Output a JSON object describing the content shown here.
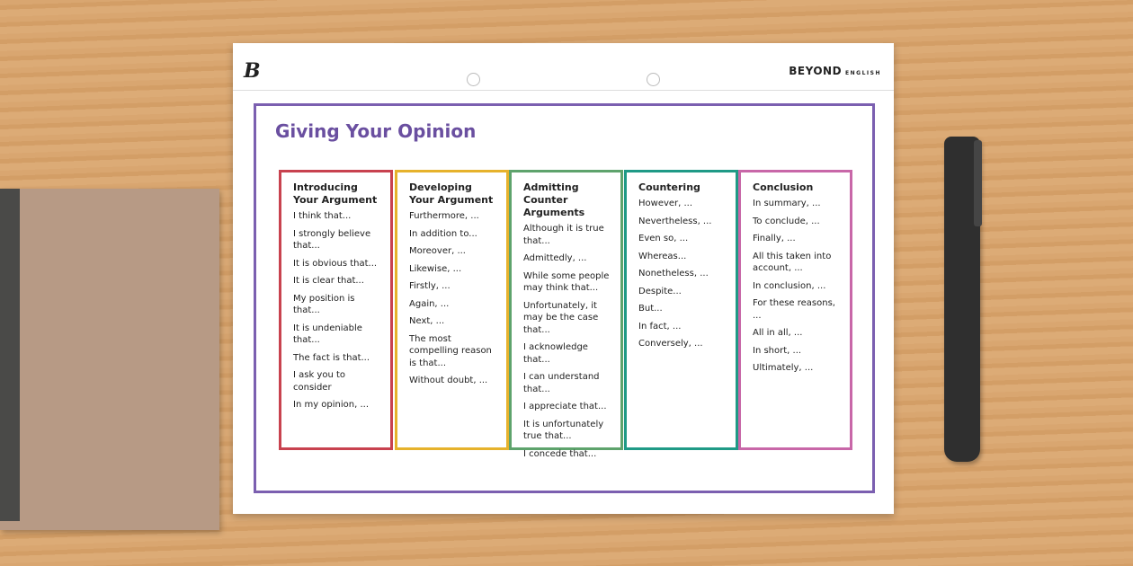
{
  "header": {
    "brand": "BEYOND",
    "brand_sub": "ENGLISH"
  },
  "title": "Giving Your Opinion",
  "columns": [
    {
      "heading": "Introducing Your Argument",
      "color": "#c8424f",
      "items": [
        "I think that...",
        "I strongly believe that...",
        "It is obvious that...",
        "It is clear that...",
        "My position is that...",
        "It is undeniable that...",
        "The fact is that...",
        "I ask you to consider",
        "In my opinion, ..."
      ]
    },
    {
      "heading": "Developing Your Argument",
      "color": "#e6b22c",
      "items": [
        "Furthermore, ...",
        "In addition to...",
        "Moreover, ...",
        "Likewise, ...",
        "Firstly, ...",
        "Again, ...",
        "Next, ...",
        "The most compelling reason is that...",
        "Without doubt, ..."
      ]
    },
    {
      "heading": "Admitting Counter Arguments",
      "color": "#5ea36c",
      "items": [
        "Although it is true that...",
        "Admittedly, ...",
        "While some people may think that...",
        "Unfortunately, it may be the case that...",
        "I acknowledge that...",
        "I can understand that...",
        "I appreciate that...",
        "It is unfortunately true that...",
        "I concede that..."
      ]
    },
    {
      "heading": "Countering",
      "color": "#1f9a86",
      "items": [
        "However, ...",
        "Nevertheless, ...",
        "Even so, ...",
        "Whereas...",
        "Nonetheless, ...",
        "Despite...",
        "But...",
        "In fact, ...",
        "Conversely, ..."
      ]
    },
    {
      "heading": "Conclusion",
      "color": "#c867a8",
      "items": [
        "In summary, ...",
        "To conclude, ...",
        "Finally, ...",
        "All this taken into account, ...",
        "In conclusion, ...",
        "For these reasons, ...",
        "All in all, ...",
        "In short, ...",
        "Ultimately, ..."
      ]
    }
  ]
}
